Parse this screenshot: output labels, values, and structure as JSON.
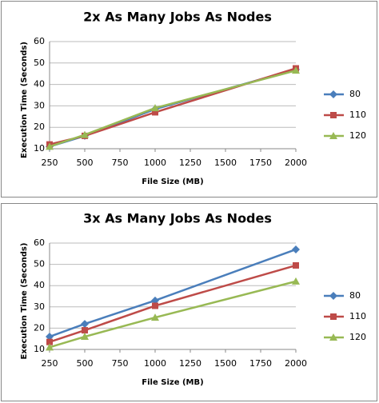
{
  "chart_data": [
    {
      "type": "line",
      "title": "2x As Many Jobs As Nodes",
      "x_label": "File Size (MB)",
      "y_label": "Execution Time (Seconds)",
      "x": [
        250,
        500,
        1000,
        2000
      ],
      "xlim": [
        250,
        2000
      ],
      "xticks": [
        250,
        500,
        750,
        1000,
        1250,
        1500,
        1750,
        2000
      ],
      "ylim": [
        10,
        60
      ],
      "yticks": [
        10,
        20,
        30,
        40,
        50,
        60
      ],
      "grid": true,
      "series": [
        {
          "name": "80",
          "color": "#4a7ebb",
          "marker": "diamond",
          "values": [
            11,
            16,
            28.5,
            47
          ]
        },
        {
          "name": "110",
          "color": "#be4b48",
          "marker": "square",
          "values": [
            12,
            16,
            27,
            47.5
          ]
        },
        {
          "name": "120",
          "color": "#98b954",
          "marker": "triangle",
          "values": [
            11,
            16.5,
            29,
            46.5
          ]
        }
      ]
    },
    {
      "type": "line",
      "title": "3x As Many Jobs As Nodes",
      "x_label": "File Size (MB)",
      "y_label": "Execution Time (Seconds)",
      "x": [
        250,
        500,
        1000,
        2000
      ],
      "xlim": [
        250,
        2000
      ],
      "xticks": [
        250,
        500,
        750,
        1000,
        1250,
        1500,
        1750,
        2000
      ],
      "ylim": [
        10,
        60
      ],
      "yticks": [
        10,
        20,
        30,
        40,
        50,
        60
      ],
      "grid": true,
      "series": [
        {
          "name": "80",
          "color": "#4a7ebb",
          "marker": "diamond",
          "values": [
            16,
            22,
            33,
            57
          ]
        },
        {
          "name": "110",
          "color": "#be4b48",
          "marker": "square",
          "values": [
            13.5,
            19,
            30.5,
            49.5
          ]
        },
        {
          "name": "120",
          "color": "#98b954",
          "marker": "triangle",
          "values": [
            11,
            16,
            25,
            42
          ]
        }
      ]
    }
  ]
}
